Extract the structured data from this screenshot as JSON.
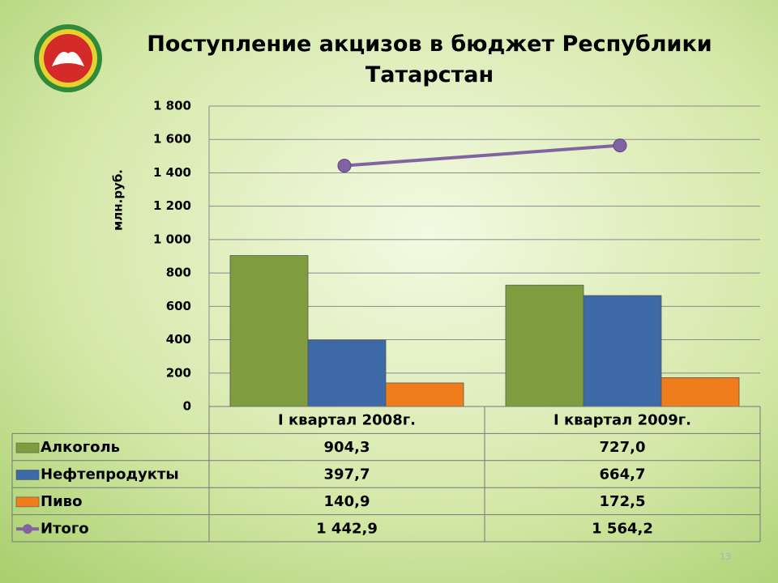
{
  "chart_data": {
    "type": "bar",
    "title": "Поступление акцизов в бюджет Республики Татарстан",
    "y_label": "млн.руб.",
    "categories": [
      "I квартал 2008г.",
      "I квартал 2009г."
    ],
    "series": [
      {
        "name": "Алкоголь",
        "color": "#7f9d3e",
        "values": [
          904.3,
          727.0
        ],
        "value_labels": [
          "904,3",
          "727,0"
        ]
      },
      {
        "name": "Нефтепродукты",
        "color": "#3d6aa6",
        "values": [
          397.7,
          664.7
        ],
        "value_labels": [
          "397,7",
          "664,7"
        ]
      },
      {
        "name": "Пиво",
        "color": "#f07d1c",
        "values": [
          140.9,
          172.5
        ],
        "value_labels": [
          "140,9",
          "172,5"
        ]
      },
      {
        "name": "Итого",
        "type": "line",
        "color": "#8064a2",
        "values": [
          1442.9,
          1564.2
        ],
        "value_labels": [
          "1 442,9",
          "1 564,2"
        ]
      }
    ],
    "ylim": [
      0,
      1800
    ],
    "yticks": [
      0,
      200,
      400,
      600,
      800,
      {
        "value": 1000,
        "label": "1 000"
      },
      {
        "value": 1200,
        "label": "1 200"
      },
      {
        "value": 1400,
        "label": "1 400"
      },
      {
        "value": 1600,
        "label": "1 600"
      },
      {
        "value": 1800,
        "label": "1 800"
      }
    ],
    "grid": true,
    "page_number": "13"
  }
}
